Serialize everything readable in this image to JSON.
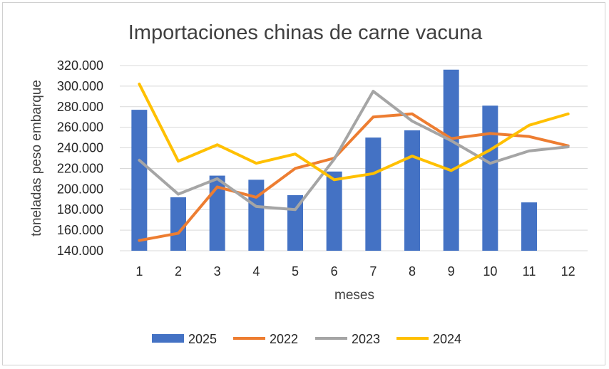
{
  "chart_data": {
    "type": "bar+line",
    "title": "Importaciones chinas de carne vacuna",
    "xlabel": "meses",
    "ylabel": "toneladas peso embarque",
    "categories": [
      "1",
      "2",
      "3",
      "4",
      "5",
      "6",
      "7",
      "8",
      "9",
      "10",
      "11",
      "12"
    ],
    "ylim": [
      140000,
      320000
    ],
    "yticks": [
      "140.000",
      "160.000",
      "180.000",
      "200.000",
      "220.000",
      "240.000",
      "260.000",
      "280.000",
      "300.000",
      "320.000"
    ],
    "grid": true,
    "legend_position": "bottom",
    "series": [
      {
        "name": "2025",
        "kind": "bar",
        "color": "#4472C4",
        "values": [
          277000,
          192000,
          213000,
          209000,
          194000,
          217000,
          250000,
          257000,
          316000,
          281000,
          187000,
          null
        ]
      },
      {
        "name": "2022",
        "kind": "line",
        "color": "#ED7D31",
        "values": [
          150000,
          157000,
          202000,
          192000,
          220000,
          230000,
          270000,
          273000,
          249000,
          254000,
          251000,
          242000
        ]
      },
      {
        "name": "2023",
        "kind": "line",
        "color": "#A5A5A5",
        "values": [
          228000,
          195000,
          210000,
          183000,
          180000,
          229000,
          295000,
          266000,
          247000,
          225000,
          237000,
          241000
        ]
      },
      {
        "name": "2024",
        "kind": "line",
        "color": "#FFC000",
        "values": [
          302000,
          227000,
          243000,
          225000,
          234000,
          209000,
          215000,
          232000,
          218000,
          238000,
          262000,
          273000
        ]
      }
    ]
  }
}
